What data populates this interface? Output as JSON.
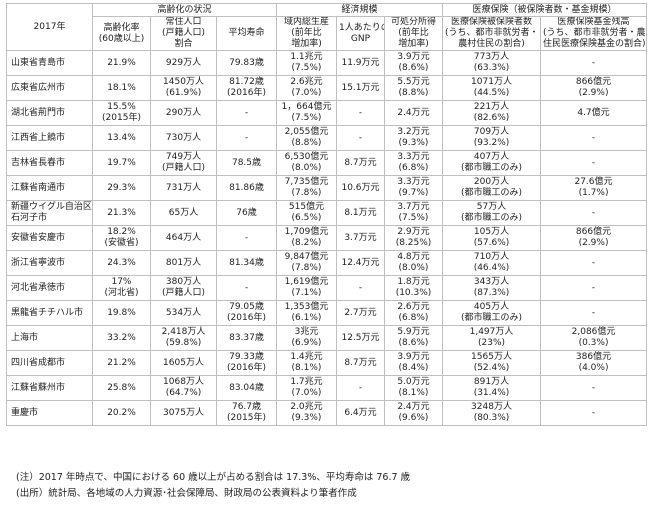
{
  "table": {
    "year_header": "2017年",
    "groups": [
      "高齢化の状況",
      "経済規模",
      "医療保険（被保険者数・基金規模）"
    ],
    "subheaders": [
      [
        "高齢化率",
        "(60歳以上)"
      ],
      [
        "常住人口",
        "(戸籍人口)",
        "割合"
      ],
      [
        "平均寿命"
      ],
      [
        "域内総生産",
        "(前年比",
        "増加率)"
      ],
      [
        "1人あたりの",
        "GNP"
      ],
      [
        "可処分所得",
        "(前年比",
        "増加率)"
      ],
      [
        "医療保険被保険者数",
        "(うち、都市非就労者・",
        "農村住民の割合)"
      ],
      [
        "医療保険基金残高",
        "(うち、都市非就労者・農村",
        "住民医療保険基金の割合)"
      ]
    ],
    "rows": [
      {
        "city": [
          "山東省青島市"
        ],
        "cells": [
          [
            "21.9%"
          ],
          [
            "929万人"
          ],
          [
            "79.83歳"
          ],
          [
            "1.1兆元",
            "(7.5%)"
          ],
          [
            "11.9万元"
          ],
          [
            "3.9万元",
            "(8.6%)"
          ],
          [
            "773万人",
            "(63.3%)"
          ],
          [
            "-"
          ]
        ]
      },
      {
        "city": [
          "広東省広州市"
        ],
        "cells": [
          [
            "18.1%"
          ],
          [
            "1450万人",
            "(61.9%)"
          ],
          [
            "81.72歳",
            "(2016年)"
          ],
          [
            "2.6兆元",
            "(7.0%)"
          ],
          [
            "15.1万元"
          ],
          [
            "5.5万元",
            "(8.8%)"
          ],
          [
            "1071万人",
            "(44.5%)"
          ],
          [
            "866億元",
            "(2.9%)"
          ]
        ]
      },
      {
        "city": [
          "湖北省荊門市"
        ],
        "cells": [
          [
            "15.5%",
            "(2015年)"
          ],
          [
            "290万人"
          ],
          [
            "-"
          ],
          [
            "1，664億元",
            "(7.5%)"
          ],
          [
            "-"
          ],
          [
            "2.4万元"
          ],
          [
            "221万人",
            "(82.6%)"
          ],
          [
            "4.7億元"
          ]
        ]
      },
      {
        "city": [
          "江西省上饒市"
        ],
        "cells": [
          [
            "13.4%"
          ],
          [
            "730万人"
          ],
          [
            "-"
          ],
          [
            "2,055億元",
            "(8.8%)"
          ],
          [
            "-"
          ],
          [
            "3.2万元",
            "(9.3%)"
          ],
          [
            "709万人",
            "(93.2%)"
          ],
          [
            "-"
          ]
        ]
      },
      {
        "city": [
          "吉林省長春市"
        ],
        "cells": [
          [
            "19.7%"
          ],
          [
            "749万人",
            "(戸籍人口)"
          ],
          [
            "78.5歳"
          ],
          [
            "6,530億元",
            "(8.0%)"
          ],
          [
            "8.7万元"
          ],
          [
            "3.3万元",
            "(6.8%)"
          ],
          [
            "407万人",
            "(都市職工のみ)"
          ],
          [
            "-"
          ]
        ]
      },
      {
        "city": [
          "江蘇省南通市"
        ],
        "cells": [
          [
            "29.3%"
          ],
          [
            "731万人"
          ],
          [
            "81.86歳"
          ],
          [
            "7,735億元",
            "(7.8%)"
          ],
          [
            "10.6万元"
          ],
          [
            "3.3万元",
            "(9.7%)"
          ],
          [
            "200万人",
            "(都市職工のみ)"
          ],
          [
            "27.6億元",
            "(1.7%)"
          ]
        ]
      },
      {
        "city": [
          "新疆ウイグル自治区",
          "石河子市"
        ],
        "cells": [
          [
            "21.3%"
          ],
          [
            "65万人"
          ],
          [
            "76歳"
          ],
          [
            "515億元",
            "(6.5%)"
          ],
          [
            "8.1万元"
          ],
          [
            "3.7万元",
            "(7.5%)"
          ],
          [
            "57万人",
            "(都市職工のみ)"
          ],
          [
            "-"
          ]
        ]
      },
      {
        "city": [
          "安徽省安慶市"
        ],
        "cells": [
          [
            "18.2%",
            "(安徽省)"
          ],
          [
            "464万人"
          ],
          [
            "-"
          ],
          [
            "1,709億元",
            "(8.2%)"
          ],
          [
            "3.7万元"
          ],
          [
            "2.9万元",
            "(8.25%)"
          ],
          [
            "105万人",
            "(57.6%)"
          ],
          [
            "866億元",
            "(2.9%)"
          ]
        ]
      },
      {
        "city": [
          "浙江省寧波市"
        ],
        "cells": [
          [
            "24.3%"
          ],
          [
            "801万人"
          ],
          [
            "81.34歳"
          ],
          [
            "9,847億元",
            "(7.8%)"
          ],
          [
            "12.4万元"
          ],
          [
            "4.8万元",
            "(8.0%)"
          ],
          [
            "710万人",
            "(46.4%)"
          ],
          [
            "-"
          ]
        ]
      },
      {
        "city": [
          "河北省承徳市"
        ],
        "cells": [
          [
            "17%",
            "(河北省)"
          ],
          [
            "380万人",
            "(戸籍人口)"
          ],
          [
            "-"
          ],
          [
            "1,619億元",
            "(7.1%)"
          ],
          [
            "-"
          ],
          [
            "1.8万元",
            "(10.3%)"
          ],
          [
            "343万人",
            "(87.3%)"
          ],
          [
            "-"
          ]
        ]
      },
      {
        "city": [
          "黒龍省チチハル市"
        ],
        "cells": [
          [
            "19.8%"
          ],
          [
            "534万人"
          ],
          [
            "79.05歳",
            "(2016年)"
          ],
          [
            "1,353億元",
            "(6.1%)"
          ],
          [
            "2.7万元"
          ],
          [
            "2.6万元",
            "(6.8%)"
          ],
          [
            "405万人",
            "(都市職工のみ)"
          ],
          [
            "-"
          ]
        ]
      },
      {
        "city": [
          "上海市"
        ],
        "cells": [
          [
            "33.2%"
          ],
          [
            "2,418万人",
            "(59.8%)"
          ],
          [
            "83.37歳"
          ],
          [
            "3兆元",
            "(6.9%)"
          ],
          [
            "12.5万元"
          ],
          [
            "5.9万元",
            "(8.6%)"
          ],
          [
            "1,497万人",
            "(23%)"
          ],
          [
            "2,086億元",
            "(0.3%)"
          ]
        ]
      },
      {
        "city": [
          "四川省成都市"
        ],
        "cells": [
          [
            "21.2%"
          ],
          [
            "1605万人"
          ],
          [
            "79.33歳",
            "(2016年)"
          ],
          [
            "1.4兆元",
            "(8.1%)"
          ],
          [
            "8.7万元"
          ],
          [
            "3.9万元",
            "(8.4%)"
          ],
          [
            "1565万人",
            "(52.4%)"
          ],
          [
            "386億元",
            "(4.0%)"
          ]
        ]
      },
      {
        "city": [
          "江蘇省蘇州市"
        ],
        "cells": [
          [
            "25.8%"
          ],
          [
            "1068万人",
            "(64.7%)"
          ],
          [
            "83.04歳"
          ],
          [
            "1.7兆元",
            "(7.0%)"
          ],
          [
            "-"
          ],
          [
            "5.0万元",
            "(8.1%)"
          ],
          [
            "891万人",
            "(31.4%)"
          ],
          [
            "-"
          ]
        ]
      },
      {
        "city": [
          "重慶市"
        ],
        "cells": [
          [
            "20.2%"
          ],
          [
            "3075万人"
          ],
          [
            "76.7歳",
            "(2015年)"
          ],
          [
            "2.0兆元",
            "(9.3%)"
          ],
          [
            "6.4万元"
          ],
          [
            "2.4万元",
            "(9.6%)"
          ],
          [
            "3248万人",
            "(80.3%)"
          ],
          [
            "-"
          ]
        ]
      }
    ]
  },
  "notes": [
    "(注）2017 年時点で、中国における 60 歳以上が占める割合は 17.3%、平均寿命は 76.7 歳",
    "(出所）統計局、各地域の人力資源･社会保障局、財政局の公表資料より筆者作成"
  ]
}
